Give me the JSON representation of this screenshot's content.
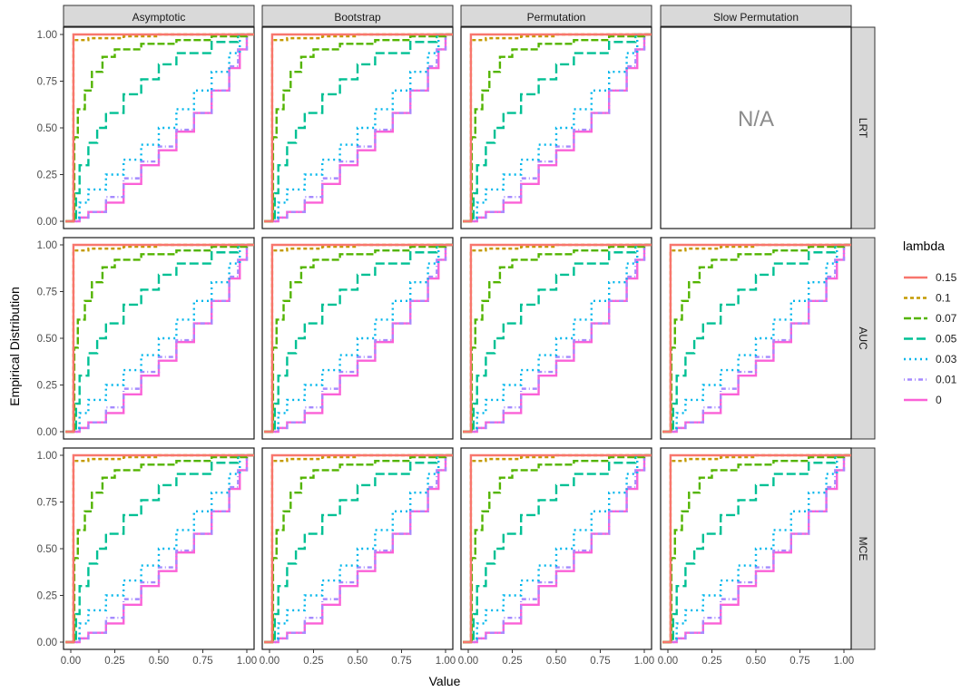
{
  "chart_data": {
    "type": "line",
    "subtype": "empirical-cdf step lines, faceted grid",
    "xlabel": "Value",
    "ylabel": "Empirical Distribution",
    "xlim": [
      0,
      1
    ],
    "ylim": [
      0,
      1
    ],
    "x_ticks": [
      "0.00",
      "0.25",
      "0.50",
      "0.75",
      "1.00"
    ],
    "y_ticks": [
      "0.00",
      "0.25",
      "0.50",
      "0.75",
      "1.00"
    ],
    "grid": false,
    "column_facets": [
      "Asymptotic",
      "Bootstrap",
      "Permutation",
      "Slow Permutation"
    ],
    "row_facets": [
      "LRT",
      "AUC",
      "MCE"
    ],
    "empty_panel": {
      "row": "LRT",
      "column": "Slow Permutation",
      "text": "N/A"
    },
    "legend": {
      "title": "lambda",
      "placement": "right",
      "entries": [
        {
          "label": "0.15",
          "color": "#F8766D",
          "dash": "solid"
        },
        {
          "label": "0.1",
          "color": "#C49A00",
          "dash": "dashed"
        },
        {
          "label": "0.07",
          "color": "#53B400",
          "dash": "longdash"
        },
        {
          "label": "0.05",
          "color": "#00C094",
          "dash": "dashed-long"
        },
        {
          "label": "0.03",
          "color": "#00B6EB",
          "dash": "dotted"
        },
        {
          "label": "0.01",
          "color": "#A58AFF",
          "dash": "dotdash"
        },
        {
          "label": "0",
          "color": "#FB61D7",
          "dash": "solid"
        }
      ]
    },
    "series_shapes": {
      "0.15": [
        [
          0,
          0
        ],
        [
          0.015,
          0
        ],
        [
          0.015,
          1
        ],
        [
          1,
          1
        ]
      ],
      "0.1": [
        [
          0,
          0
        ],
        [
          0.015,
          0
        ],
        [
          0.015,
          0.97
        ],
        [
          0.1,
          0.98
        ],
        [
          0.3,
          0.99
        ],
        [
          0.5,
          1
        ],
        [
          1,
          1
        ]
      ],
      "0.07": [
        [
          0,
          0
        ],
        [
          0.02,
          0
        ],
        [
          0.02,
          0.45
        ],
        [
          0.04,
          0.6
        ],
        [
          0.08,
          0.7
        ],
        [
          0.12,
          0.8
        ],
        [
          0.18,
          0.88
        ],
        [
          0.25,
          0.92
        ],
        [
          0.4,
          0.95
        ],
        [
          0.6,
          0.97
        ],
        [
          0.8,
          0.99
        ],
        [
          1,
          1
        ]
      ],
      "0.05": [
        [
          0,
          0
        ],
        [
          0.02,
          0
        ],
        [
          0.03,
          0.15
        ],
        [
          0.05,
          0.3
        ],
        [
          0.1,
          0.42
        ],
        [
          0.15,
          0.5
        ],
        [
          0.2,
          0.58
        ],
        [
          0.3,
          0.68
        ],
        [
          0.4,
          0.76
        ],
        [
          0.5,
          0.84
        ],
        [
          0.6,
          0.9
        ],
        [
          0.8,
          0.96
        ],
        [
          0.95,
          1
        ],
        [
          1,
          1
        ]
      ],
      "0.03": [
        [
          0,
          0
        ],
        [
          0.02,
          0.02
        ],
        [
          0.05,
          0.1
        ],
        [
          0.1,
          0.17
        ],
        [
          0.2,
          0.25
        ],
        [
          0.3,
          0.33
        ],
        [
          0.4,
          0.41
        ],
        [
          0.5,
          0.5
        ],
        [
          0.6,
          0.6
        ],
        [
          0.7,
          0.7
        ],
        [
          0.8,
          0.8
        ],
        [
          0.9,
          0.9
        ],
        [
          0.96,
          1
        ],
        [
          1,
          1
        ]
      ],
      "0.01": [
        [
          0,
          0
        ],
        [
          0.05,
          0.02
        ],
        [
          0.1,
          0.05
        ],
        [
          0.2,
          0.13
        ],
        [
          0.3,
          0.23
        ],
        [
          0.4,
          0.32
        ],
        [
          0.5,
          0.4
        ],
        [
          0.6,
          0.49
        ],
        [
          0.7,
          0.58
        ],
        [
          0.8,
          0.7
        ],
        [
          0.9,
          0.83
        ],
        [
          0.95,
          0.92
        ],
        [
          1,
          1
        ]
      ],
      "0": [
        [
          0,
          0
        ],
        [
          0.04,
          0
        ],
        [
          0.05,
          0.02
        ],
        [
          0.1,
          0.05
        ],
        [
          0.2,
          0.1
        ],
        [
          0.3,
          0.2
        ],
        [
          0.4,
          0.3
        ],
        [
          0.5,
          0.38
        ],
        [
          0.6,
          0.48
        ],
        [
          0.7,
          0.58
        ],
        [
          0.8,
          0.7
        ],
        [
          0.9,
          0.82
        ],
        [
          0.96,
          0.92
        ],
        [
          1,
          1
        ]
      ]
    }
  }
}
